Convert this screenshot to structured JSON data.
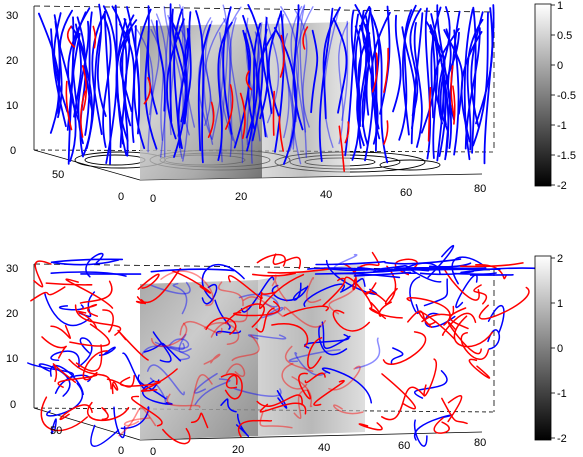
{
  "chart_data": [
    {
      "type": "3d-field-line-plot",
      "panel": "top",
      "z_ticks": [
        "0",
        "10",
        "20",
        "30"
      ],
      "y_ticks": [
        "0",
        "50"
      ],
      "x_ticks": [
        "0",
        "20",
        "40",
        "60",
        "80"
      ],
      "colorbar": {
        "min": -2,
        "max": 1,
        "ticks": [
          "1",
          "0.5",
          "0",
          "-0.5",
          "-1",
          "-1.5",
          "-2"
        ],
        "colormap": "gray"
      },
      "series": [
        {
          "color": "#0000ff"
        },
        {
          "color": "#ff0000"
        }
      ]
    },
    {
      "type": "3d-field-line-plot",
      "panel": "bottom",
      "z_ticks": [
        "0",
        "10",
        "20",
        "30"
      ],
      "y_ticks": [
        "0",
        "50"
      ],
      "x_ticks": [
        "0",
        "20",
        "40",
        "60",
        "80"
      ],
      "colorbar": {
        "min": -2,
        "max": 2,
        "ticks": [
          "2",
          "1",
          "0",
          "-1",
          "-2"
        ],
        "colormap": "gray"
      },
      "series": [
        {
          "color": "#0000ff"
        },
        {
          "color": "#ff0000"
        }
      ]
    }
  ]
}
